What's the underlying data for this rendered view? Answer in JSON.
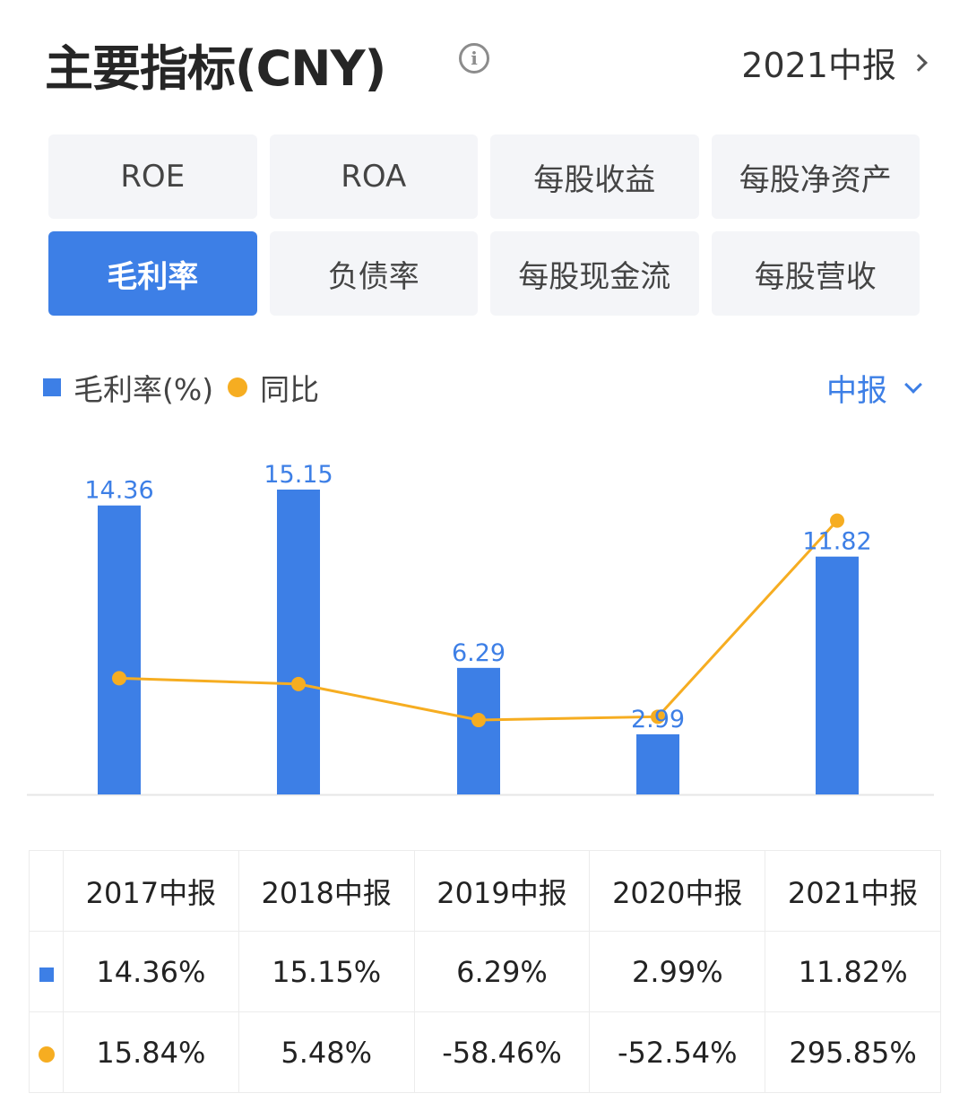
{
  "header": {
    "title": "主要指标(CNY)",
    "info_glyph": "i",
    "period_label": "2021中报"
  },
  "tabs": [
    {
      "label": "ROE",
      "active": false
    },
    {
      "label": "ROA",
      "active": false
    },
    {
      "label": "每股收益",
      "active": false
    },
    {
      "label": "每股净资产",
      "active": false
    },
    {
      "label": "毛利率",
      "active": true
    },
    {
      "label": "负债率",
      "active": false
    },
    {
      "label": "每股现金流",
      "active": false
    },
    {
      "label": "每股营收",
      "active": false
    }
  ],
  "legend": {
    "bar_label": "毛利率(%)",
    "line_label": "同比"
  },
  "period_select": "中报",
  "colors": {
    "accent": "#3d7fe6",
    "line": "#f6ad21",
    "positive": "#e0383e",
    "negative": "#1d9a58"
  },
  "chart_data": {
    "type": "bar",
    "categories": [
      "2017中报",
      "2018中报",
      "2019中报",
      "2020中报",
      "2021中报"
    ],
    "series": [
      {
        "name": "毛利率(%)",
        "type": "bar",
        "values": [
          14.36,
          15.15,
          6.29,
          2.99,
          11.82
        ],
        "labels": [
          "14.36",
          "15.15",
          "6.29",
          "2.99",
          "11.82"
        ]
      },
      {
        "name": "同比",
        "type": "line",
        "values": [
          15.84,
          5.48,
          -58.46,
          -52.54,
          295.85
        ]
      }
    ]
  },
  "table": {
    "headers": [
      "2017中报",
      "2018中报",
      "2019中报",
      "2020中报",
      "2021中报"
    ],
    "rows": [
      {
        "marker": "square",
        "cells": [
          "14.36%",
          "15.15%",
          "6.29%",
          "2.99%",
          "11.82%"
        ]
      },
      {
        "marker": "dot",
        "cells": [
          "15.84%",
          "5.48%",
          "-58.46%",
          "-52.54%",
          "295.85%"
        ]
      }
    ]
  }
}
